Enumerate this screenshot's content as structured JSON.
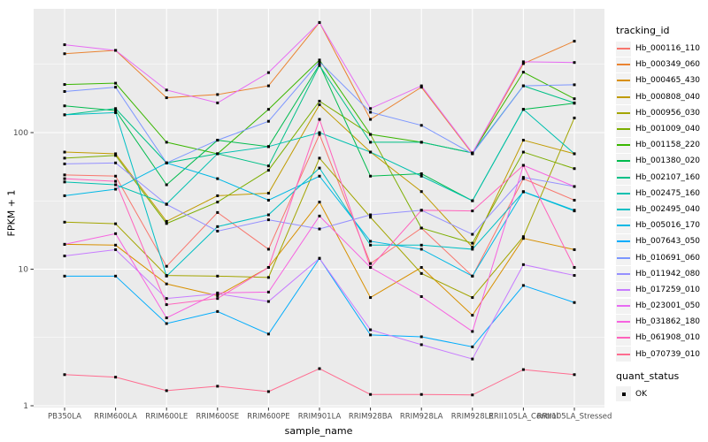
{
  "chart_data": {
    "type": "line",
    "title": "",
    "xlabel": "sample_name",
    "ylabel": "FPKM + 1",
    "y_scale": "log10",
    "y_ticks": [
      1,
      10,
      100
    ],
    "y_minor_ticks": [
      3.1623,
      31.623,
      316.23
    ],
    "ylim": [
      1,
      800
    ],
    "grid": "white major and minor gridlines on grey panel",
    "legend_position": "right",
    "legend_title": "tracking_id",
    "point_marker": "small black square (quant_status OK)",
    "categories": [
      "PB350LA",
      "RRIM600LA",
      "RRIM600LE",
      "RRIM600SE",
      "RRIM600PE",
      "RRIM901LA",
      "RRIM928BA",
      "RRIM928LA",
      "RRIM928LE",
      "RRII105LA_Control",
      "RRII105LA_Stressed"
    ],
    "series": [
      {
        "name": "Hb_000116_110",
        "color": "#F8766D",
        "values": [
          49,
          48,
          10.5,
          26,
          14,
          97,
          11,
          20,
          8.9,
          46,
          32
        ]
      },
      {
        "name": "Hb_000349_060",
        "color": "#EA8331",
        "values": [
          378,
          400,
          180,
          190,
          220,
          640,
          125,
          215,
          70,
          320,
          467
        ]
      },
      {
        "name": "Hb_000465_430",
        "color": "#D89000",
        "values": [
          15.2,
          15,
          7.8,
          6.4,
          10.3,
          31,
          6.2,
          10.3,
          4.6,
          16.8,
          13.9
        ]
      },
      {
        "name": "Hb_000808_040",
        "color": "#C09B00",
        "values": [
          72,
          70,
          22.4,
          34.5,
          36,
          160,
          72,
          37,
          14.5,
          88,
          70
        ]
      },
      {
        "name": "Hb_000956_030",
        "color": "#A3A500",
        "values": [
          22.1,
          21.5,
          9.0,
          8.9,
          8.7,
          65,
          24,
          9.3,
          6.2,
          17.3,
          128
        ]
      },
      {
        "name": "Hb_001009_040",
        "color": "#7CAE00",
        "values": [
          65,
          68,
          21.6,
          31,
          53,
          170,
          97,
          20,
          15.5,
          72,
          54.5
        ]
      },
      {
        "name": "Hb_001158_220",
        "color": "#39B600",
        "values": [
          225,
          230,
          85,
          70,
          148,
          340,
          97,
          85,
          71,
          277,
          177
        ]
      },
      {
        "name": "Hb_001380_020",
        "color": "#00BB4E",
        "values": [
          157,
          145,
          41.5,
          88,
          79,
          315,
          48,
          50,
          31.7,
          148,
          164
        ]
      },
      {
        "name": "Hb_002107_160",
        "color": "#00C087",
        "values": [
          135,
          150,
          60,
          70,
          57,
          310,
          85,
          85,
          71,
          220,
          165
        ]
      },
      {
        "name": "Hb_002475_160",
        "color": "#00C0AF",
        "values": [
          43.5,
          41.5,
          30,
          70,
          79,
          100,
          72,
          48,
          31.7,
          148,
          70
        ]
      },
      {
        "name": "Hb_002495_040",
        "color": "#00BFC4",
        "values": [
          135,
          140,
          8.9,
          20.5,
          25,
          55,
          15,
          15,
          14,
          36.8,
          26.7
        ]
      },
      {
        "name": "Hb_005016_170",
        "color": "#00B8E5",
        "values": [
          34.5,
          38.5,
          60,
          46,
          32,
          48,
          16,
          14,
          8.9,
          37,
          27
        ]
      },
      {
        "name": "Hb_007643_050",
        "color": "#00ACFC",
        "values": [
          8.9,
          8.9,
          4.0,
          4.9,
          3.35,
          12,
          3.3,
          3.2,
          2.7,
          7.6,
          5.7
        ]
      },
      {
        "name": "Hb_010691_060",
        "color": "#7C96FF",
        "values": [
          200,
          215,
          60,
          88,
          121,
          330,
          141,
          113,
          70,
          220,
          224
        ]
      },
      {
        "name": "Hb_011942_080",
        "color": "#9590FF",
        "values": [
          59,
          60,
          29.8,
          19,
          23,
          19.7,
          25,
          27,
          18,
          47,
          40.3
        ]
      },
      {
        "name": "Hb_017259_010",
        "color": "#C77CFF",
        "values": [
          12.5,
          13.9,
          6.1,
          6.6,
          5.8,
          12,
          3.6,
          2.8,
          2.2,
          10.8,
          9.0
        ]
      },
      {
        "name": "Hb_023001_050",
        "color": "#E76BF3",
        "values": [
          440,
          400,
          205,
          165,
          275,
          640,
          150,
          220,
          71,
          330,
          326
        ]
      },
      {
        "name": "Hb_031862_180",
        "color": "#F763E0",
        "values": [
          15.2,
          18.2,
          4.4,
          6.7,
          6.8,
          24.5,
          10.3,
          6.3,
          3.5,
          57.6,
          40.3
        ]
      },
      {
        "name": "Hb_061908_010",
        "color": "#FF62BC",
        "values": [
          46,
          44,
          5.5,
          6.1,
          10.3,
          125,
          10.3,
          27,
          26.7,
          57.6,
          10.3
        ]
      },
      {
        "name": "Hb_070739_010",
        "color": "#FF6C90",
        "values": [
          1.69,
          1.62,
          1.29,
          1.39,
          1.27,
          1.87,
          1.21,
          1.21,
          1.2,
          1.84,
          1.69
        ]
      }
    ],
    "quant_legend": {
      "title": "quant_status",
      "items": [
        {
          "label": "OK",
          "marker": "black-square"
        }
      ]
    },
    "colors": {
      "panel_background": "#EBEBEB",
      "gridline": "#FFFFFF",
      "tick_label": "#4D4D4D",
      "axis_title": "#000000",
      "legend_key_background": "#F2F2F2",
      "point": "#000000"
    }
  }
}
